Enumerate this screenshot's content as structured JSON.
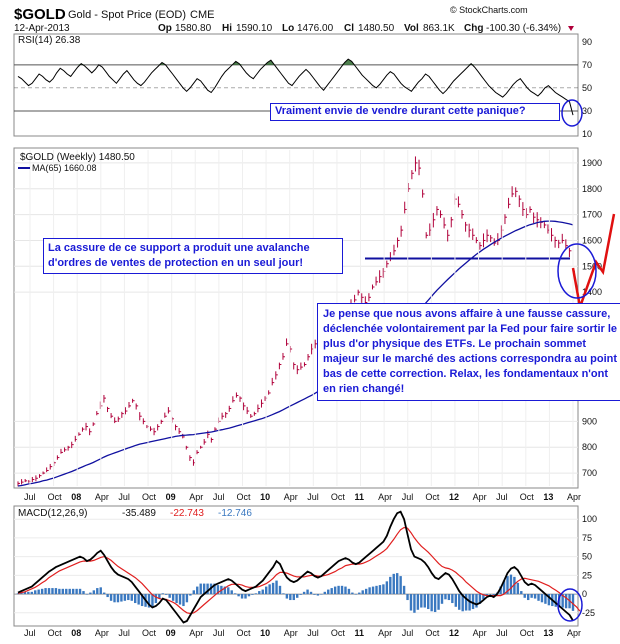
{
  "header": {
    "symbol": "$GOLD",
    "description": "Gold - Spot Price (EOD)",
    "exchange": "CME",
    "date": "12-Apr-2013",
    "watermark": "© StockCharts.com",
    "op_label": "Op",
    "op": "1580.80",
    "hi_label": "Hi",
    "hi": "1590.10",
    "lo_label": "Lo",
    "lo": "1476.00",
    "cl_label": "Cl",
    "cl": "1480.50",
    "vol_label": "Vol",
    "vol": "863.1K",
    "chg_label": "Chg",
    "chg": "-100.30 (-6.34%)"
  },
  "annotations": {
    "rsi_note": "Vraiment envie de vendre durant cette panique?",
    "support_note": "La cassure de ce support a produit une avalanche d'ordres de ventes de protection en un seul jour!",
    "fed_note": "Je pense que nous avons affaire à une fausse cassure, déclenchée volontairement par la Fed pour faire sortir le plus d'or physique des ETFs. Le prochain sommet majeur sur le marché des actions correspondra au point bas de cette correction. Relax, les fondamentaux n'ont en rien changé!"
  },
  "colors": {
    "price_bars": "#b0003a",
    "ma_line": "#1010a0",
    "macd_line": "#000000",
    "signal_line": "#e02020",
    "histogram": "#3a78c0",
    "annotation": "#1a1ad6",
    "arrow": "#e01010",
    "rsi_fill": "#2f6b2f"
  },
  "chart_data": [
    {
      "type": "line",
      "panel": "rsi",
      "legend": "RSI(14) 26.38",
      "ylim": [
        10,
        95
      ],
      "ticks": [
        10,
        30,
        50,
        70,
        90
      ],
      "reference_lines": [
        30,
        50,
        70
      ],
      "series": [
        {
          "name": "RSI(14)",
          "values": [
            60,
            58,
            55,
            52,
            54,
            58,
            62,
            60,
            57,
            55,
            58,
            63,
            67,
            65,
            62,
            60,
            64,
            68,
            71,
            69,
            66,
            63,
            66,
            70,
            68,
            64,
            60,
            57,
            54,
            58,
            62,
            65,
            61,
            57,
            54,
            52,
            55,
            59,
            63,
            66,
            69,
            72,
            70,
            66,
            62,
            58,
            54,
            50,
            47,
            50,
            54,
            58,
            56,
            52,
            48,
            46,
            50,
            55,
            60,
            64,
            67,
            70,
            73,
            71,
            67,
            63,
            60,
            58,
            62,
            66,
            69,
            72,
            74,
            70,
            66,
            62,
            58,
            54,
            52,
            56,
            60,
            63,
            66,
            63,
            59,
            55,
            51,
            48,
            52,
            56,
            60,
            64,
            68,
            72,
            75,
            73,
            69,
            65,
            61,
            58,
            55,
            52,
            50,
            53,
            57,
            61,
            64,
            62,
            58,
            54,
            51,
            49,
            47,
            51,
            55,
            58,
            62,
            60,
            56,
            52,
            48,
            45,
            48,
            52,
            56,
            59,
            62,
            65,
            68,
            71,
            68,
            64,
            60,
            56,
            52,
            49,
            46,
            44,
            42,
            45,
            49,
            53,
            56,
            58,
            54,
            50,
            47,
            45,
            43,
            46,
            50,
            52,
            49,
            46,
            44,
            42,
            40,
            38,
            26.38
          ]
        }
      ]
    },
    {
      "type": "bar",
      "panel": "price",
      "legend": "$GOLD (Weekly) 1480.50",
      "ma_legend": "MA(65) 1660.08",
      "ylim": [
        650,
        1950
      ],
      "ticks": [
        700,
        800,
        900,
        1400,
        1500,
        1600,
        1700,
        1800,
        1900
      ],
      "x_ticks": [
        "Jul",
        "Oct",
        "08",
        "Apr",
        "Jul",
        "Oct",
        "09",
        "Apr",
        "Jul",
        "Oct",
        "10",
        "Apr",
        "Jul",
        "Oct",
        "11",
        "Apr",
        "Jul",
        "Oct",
        "12",
        "Apr",
        "Jul",
        "Oct",
        "13",
        "Apr"
      ],
      "support_level": 1530,
      "series": [
        {
          "name": "$GOLD",
          "values": [
            660,
            665,
            670,
            668,
            675,
            680,
            690,
            700,
            710,
            725,
            740,
            760,
            780,
            790,
            800,
            810,
            830,
            850,
            870,
            880,
            860,
            890,
            930,
            960,
            990,
            950,
            920,
            900,
            910,
            930,
            940,
            960,
            980,
            960,
            920,
            900,
            880,
            870,
            860,
            880,
            900,
            920,
            940,
            910,
            880,
            860,
            840,
            800,
            760,
            740,
            780,
            800,
            820,
            850,
            830,
            870,
            900,
            920,
            930,
            950,
            980,
            1000,
            990,
            960,
            940,
            920,
            930,
            950,
            970,
            990,
            1010,
            1050,
            1080,
            1120,
            1150,
            1200,
            1180,
            1120,
            1100,
            1110,
            1120,
            1150,
            1180,
            1200,
            1230,
            1210,
            1190,
            1200,
            1230,
            1250,
            1270,
            1300,
            1330,
            1350,
            1370,
            1400,
            1380,
            1360,
            1380,
            1420,
            1440,
            1460,
            1480,
            1510,
            1530,
            1560,
            1600,
            1640,
            1720,
            1800,
            1860,
            1900,
            1880,
            1780,
            1620,
            1640,
            1680,
            1720,
            1700,
            1660,
            1620,
            1680,
            1760,
            1740,
            1700,
            1660,
            1640,
            1620,
            1600,
            1580,
            1600,
            1620,
            1610,
            1590,
            1600,
            1640,
            1690,
            1740,
            1780,
            1790,
            1760,
            1720,
            1700,
            1720,
            1690,
            1680,
            1670,
            1660,
            1640,
            1620,
            1600,
            1590,
            1600,
            1580,
            1560,
            1480.5
          ]
        },
        {
          "name": "MA(65)",
          "values": [
            650,
            652,
            655,
            658,
            660,
            663,
            666,
            670,
            673,
            677,
            681,
            686,
            691,
            696,
            701,
            706,
            712,
            718,
            724,
            730,
            735,
            741,
            748,
            755,
            762,
            768,
            773,
            778,
            783,
            788,
            793,
            798,
            803,
            808,
            812,
            815,
            818,
            821,
            824,
            827,
            830,
            833,
            836,
            839,
            842,
            844,
            846,
            847,
            848,
            849,
            851,
            853,
            855,
            857,
            859,
            862,
            865,
            868,
            871,
            874,
            878,
            882,
            886,
            890,
            894,
            898,
            902,
            906,
            910,
            915,
            920,
            926,
            932,
            938,
            945,
            952,
            959,
            966,
            973,
            980,
            987,
            994,
            1001,
            1009,
            1017,
            1025,
            1033,
            1041,
            1049,
            1058,
            1067,
            1076,
            1085,
            1095,
            1105,
            1115,
            1125,
            1135,
            1145,
            1156,
            1167,
            1178,
            1189,
            1201,
            1213,
            1225,
            1238,
            1251,
            1265,
            1280,
            1296,
            1312,
            1328,
            1344,
            1360,
            1376,
            1392,
            1407,
            1421,
            1435,
            1449,
            1462,
            1475,
            1488,
            1500,
            1512,
            1524,
            1535,
            1546,
            1556,
            1566,
            1575,
            1584,
            1593,
            1601,
            1609,
            1617,
            1624,
            1631,
            1638,
            1644,
            1650,
            1656,
            1661,
            1665,
            1669,
            1672,
            1674,
            1675,
            1675,
            1674,
            1672,
            1670,
            1667,
            1664,
            1660.08
          ]
        }
      ]
    },
    {
      "type": "line",
      "panel": "macd",
      "legend": {
        "name": "MACD(12,26,9)",
        "macd": "-35.489",
        "signal": "-22.743",
        "hist": "-12.746"
      },
      "ylim": [
        -40,
        115
      ],
      "ticks": [
        -25,
        0,
        25,
        50,
        75,
        100
      ],
      "x_ticks": [
        "Jul",
        "Oct",
        "08",
        "Apr",
        "Jul",
        "Oct",
        "09",
        "Apr",
        "Jul",
        "Oct",
        "10",
        "Apr",
        "Jul",
        "Oct",
        "11",
        "Apr",
        "Jul",
        "Oct",
        "12",
        "Apr",
        "Jul",
        "Oct",
        "13",
        "Apr"
      ],
      "series": [
        {
          "name": "MACD",
          "values": [
            2,
            4,
            6,
            8,
            10,
            14,
            18,
            22,
            26,
            30,
            33,
            36,
            38,
            40,
            42,
            44,
            46,
            48,
            50,
            48,
            44,
            46,
            50,
            55,
            58,
            52,
            44,
            36,
            30,
            26,
            24,
            22,
            20,
            16,
            10,
            4,
            -2,
            -8,
            -14,
            -18,
            -16,
            -12,
            -6,
            -8,
            -14,
            -20,
            -26,
            -32,
            -38,
            -36,
            -28,
            -20,
            -12,
            -4,
            0,
            4,
            8,
            12,
            14,
            16,
            18,
            20,
            18,
            14,
            10,
            6,
            4,
            6,
            8,
            10,
            14,
            18,
            24,
            30,
            36,
            44,
            40,
            30,
            22,
            18,
            16,
            18,
            22,
            26,
            30,
            28,
            24,
            22,
            24,
            28,
            32,
            36,
            40,
            44,
            46,
            48,
            46,
            42,
            40,
            42,
            46,
            50,
            54,
            58,
            62,
            66,
            70,
            78,
            90,
            100,
            108,
            110,
            100,
            80,
            60,
            50,
            48,
            46,
            42,
            36,
            28,
            22,
            20,
            24,
            28,
            26,
            20,
            12,
            4,
            -2,
            -6,
            -10,
            -12,
            -14,
            -12,
            -8,
            -4,
            -2,
            -4,
            0,
            8,
            18,
            28,
            34,
            36,
            32,
            24,
            16,
            12,
            14,
            12,
            8,
            4,
            0,
            -4,
            -8,
            -12,
            -16,
            -20,
            -24,
            -28,
            -35.489
          ]
        },
        {
          "name": "Signal",
          "values": [
            1,
            2,
            3,
            5,
            7,
            9,
            12,
            15,
            18,
            22,
            25,
            28,
            31,
            33,
            35,
            37,
            39,
            41,
            43,
            44,
            44,
            44,
            45,
            47,
            49,
            50,
            48,
            45,
            41,
            37,
            34,
            31,
            28,
            25,
            22,
            18,
            14,
            9,
            4,
            -1,
            -4,
            -6,
            -7,
            -7,
            -9,
            -11,
            -14,
            -18,
            -22,
            -25,
            -26,
            -25,
            -22,
            -18,
            -14,
            -10,
            -6,
            -2,
            2,
            5,
            8,
            11,
            13,
            13,
            13,
            12,
            10,
            9,
            9,
            9,
            10,
            12,
            14,
            17,
            21,
            26,
            29,
            29,
            28,
            26,
            24,
            23,
            23,
            23,
            24,
            25,
            25,
            24,
            24,
            25,
            26,
            28,
            30,
            33,
            35,
            38,
            39,
            40,
            40,
            40,
            41,
            43,
            45,
            48,
            51,
            54,
            57,
            61,
            67,
            73,
            80,
            86,
            89,
            88,
            82,
            75,
            69,
            64,
            60,
            56,
            51,
            46,
            41,
            37,
            35,
            34,
            32,
            29,
            25,
            21,
            16,
            12,
            8,
            4,
            1,
            -1,
            -2,
            -2,
            -2,
            -2,
            -2,
            0,
            4,
            8,
            13,
            17,
            20,
            21,
            20,
            19,
            18,
            17,
            15,
            13,
            11,
            8,
            5,
            2,
            -2,
            -5,
            -9,
            -13,
            -17,
            -22.743
          ]
        }
      ]
    }
  ]
}
